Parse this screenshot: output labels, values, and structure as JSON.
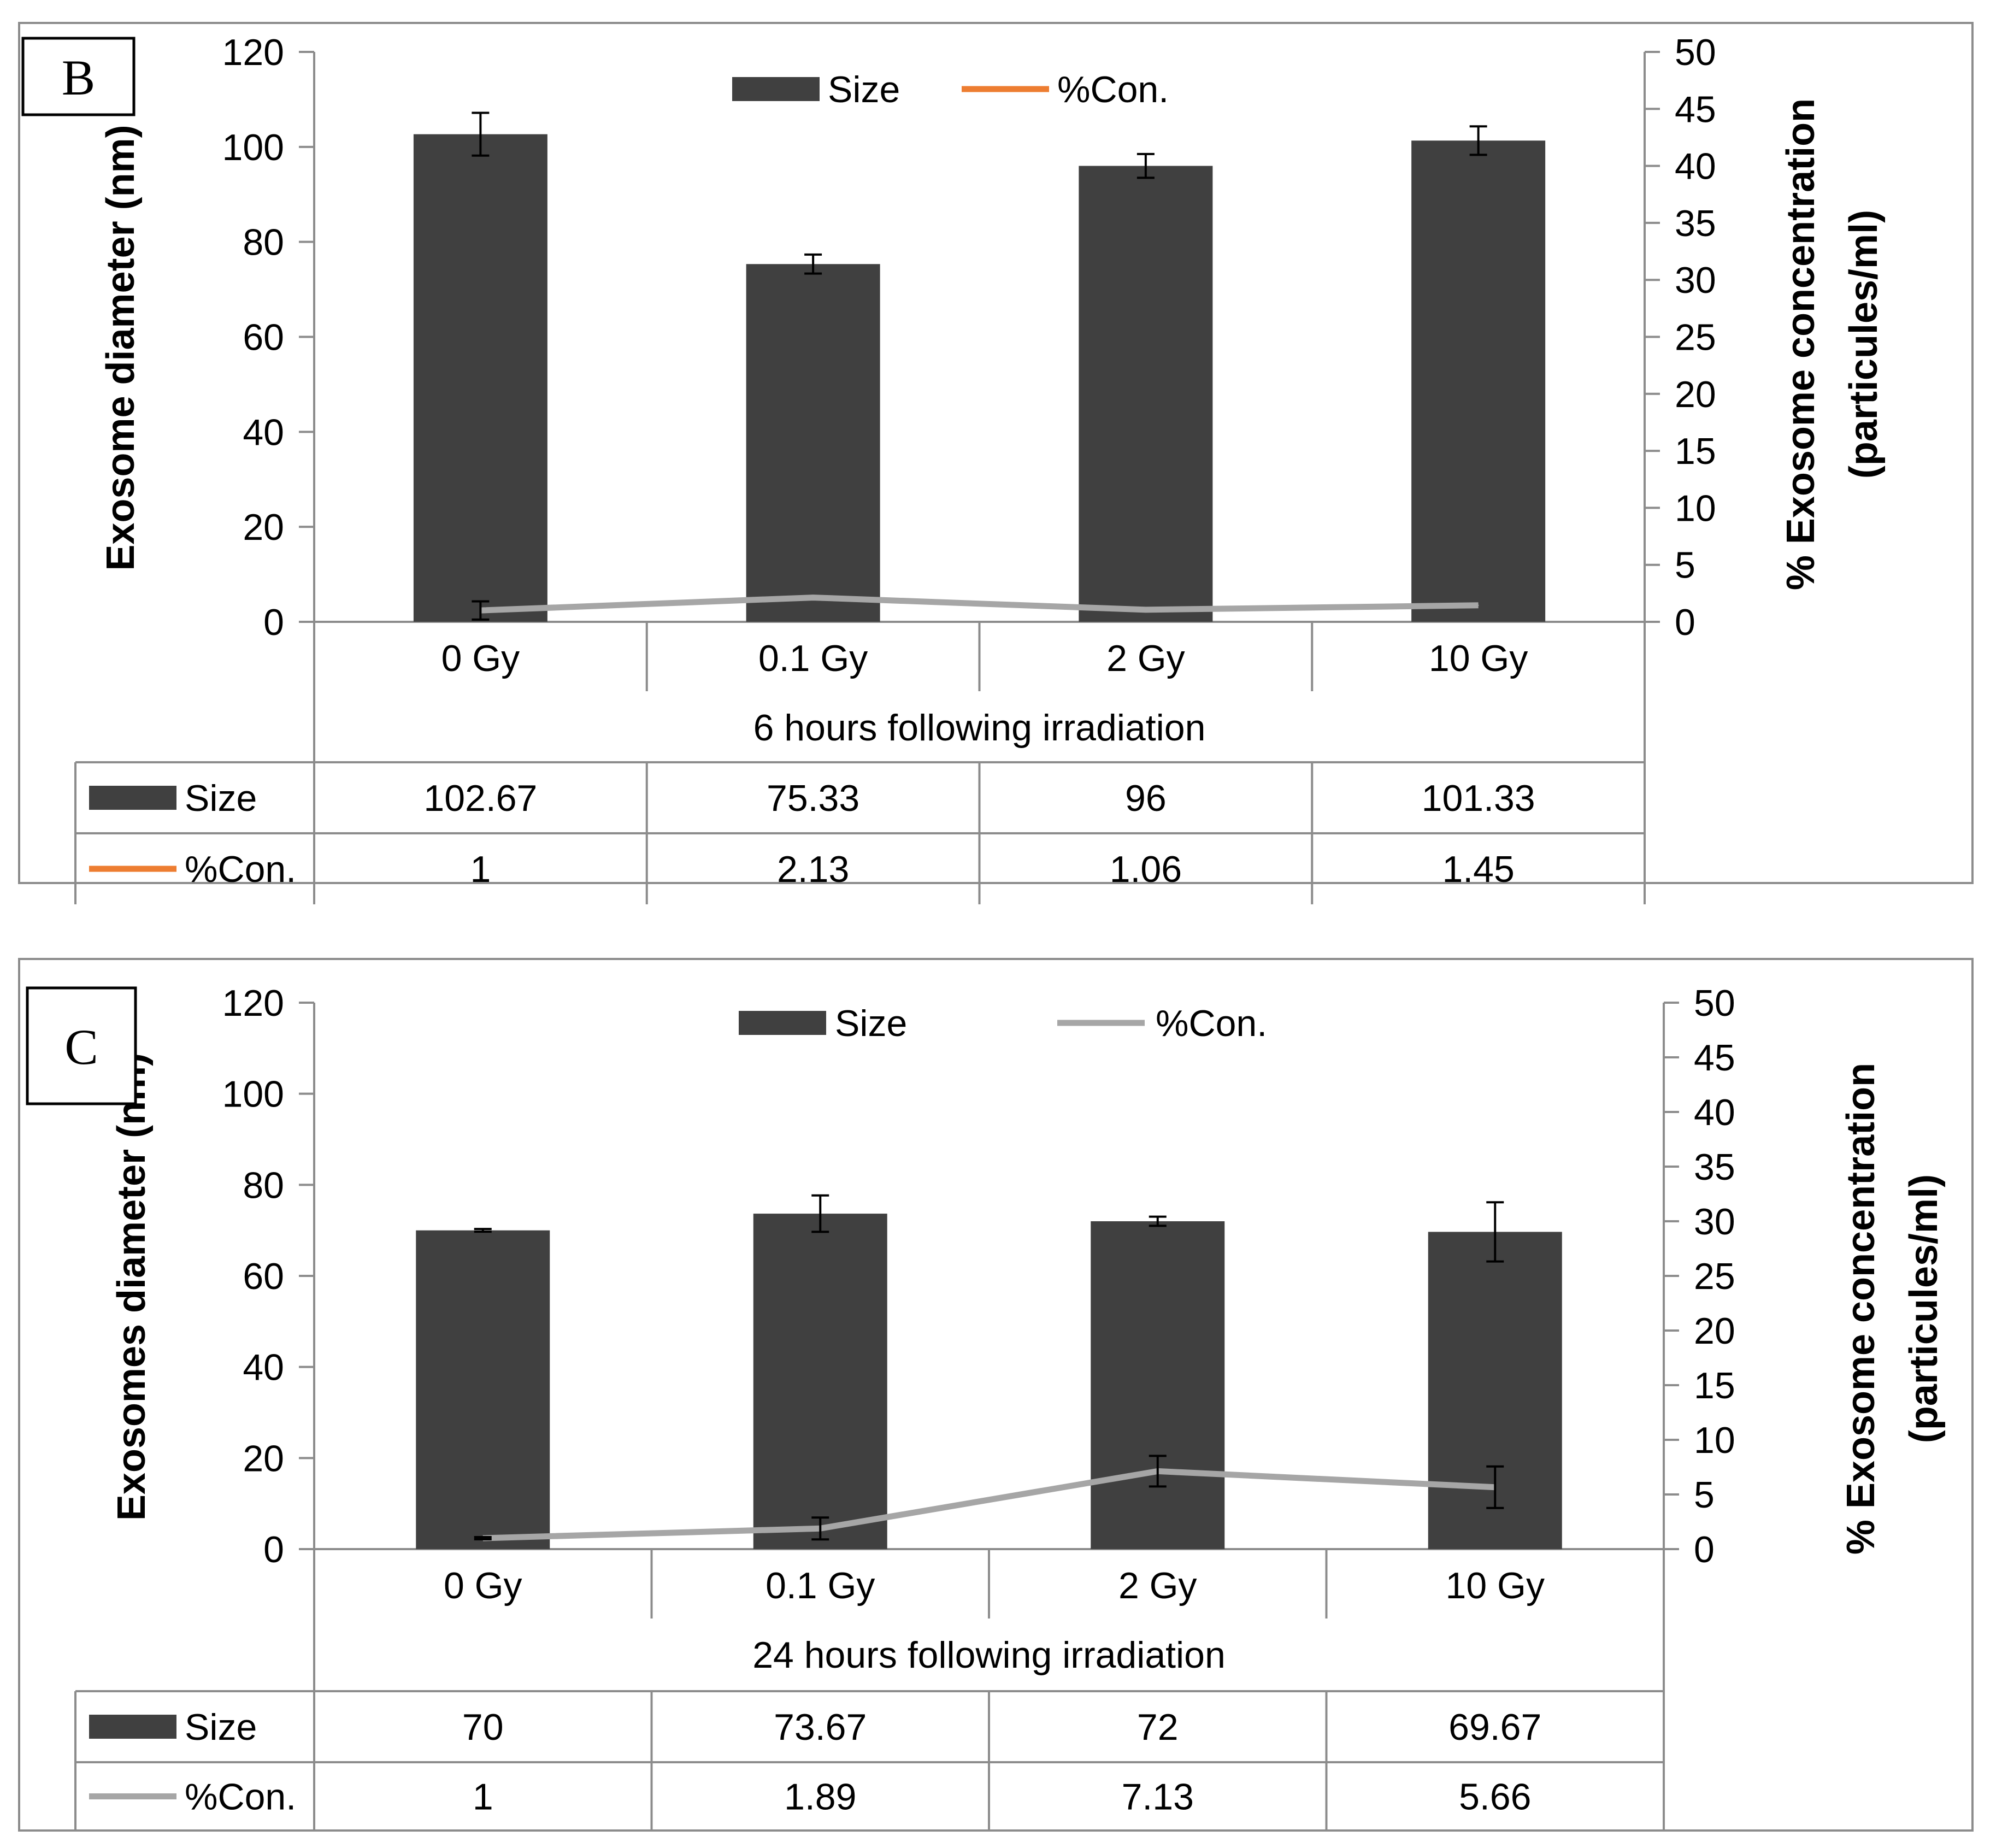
{
  "chart_data": [
    {
      "type": "bar",
      "panel_label": "B",
      "categories": [
        "0 Gy",
        "0.1 Gy",
        "2 Gy",
        "10 Gy"
      ],
      "xlabel": "6 hours following irradiation",
      "ylabel": "Exosome diameter (nm)",
      "y2label_line1": "% Exosome concentration",
      "y2label_line2": "(particules/ml)",
      "ylim": [
        0,
        120
      ],
      "y_ticks": [
        "0",
        "20",
        "40",
        "60",
        "80",
        "100",
        "120"
      ],
      "y2lim": [
        0,
        50
      ],
      "y2_ticks": [
        "0",
        "5",
        "10",
        "15",
        "20",
        "25",
        "30",
        "35",
        "40",
        "45",
        "50"
      ],
      "legend_position": "top-center",
      "series": [
        {
          "name": "Size",
          "kind": "bar",
          "axis": "left",
          "color": "#404040",
          "values": [
            102.67,
            75.33,
            96,
            101.33
          ],
          "errors": [
            4.5,
            2.0,
            2.5,
            3.0
          ],
          "table_values": [
            "102.67",
            "75.33",
            "96",
            "101.33"
          ]
        },
        {
          "name": "%Con.",
          "kind": "line",
          "axis": "right",
          "color": "#a6a6a6",
          "legend_color": "#ed7d31",
          "values": [
            1,
            2.13,
            1.06,
            1.45
          ],
          "errors": [
            0.8,
            0.0,
            0.0,
            0.0
          ],
          "table_values": [
            "1",
            "2.13",
            "1.06",
            "1.45"
          ]
        }
      ]
    },
    {
      "type": "bar",
      "panel_label": "C",
      "categories": [
        "0 Gy",
        "0.1 Gy",
        "2 Gy",
        "10 Gy"
      ],
      "xlabel": "24 hours following irradiation",
      "ylabel": "Exosomes diameter (nm)",
      "y2label_line1": "% Exosome concentration",
      "y2label_line2": "(particules/ml)",
      "ylim": [
        0,
        120
      ],
      "y_ticks": [
        "0",
        "20",
        "40",
        "60",
        "80",
        "100",
        "120"
      ],
      "y2lim": [
        0,
        50
      ],
      "y2_ticks": [
        "0",
        "5",
        "10",
        "15",
        "20",
        "25",
        "30",
        "35",
        "40",
        "45",
        "50"
      ],
      "legend_position": "top-center",
      "series": [
        {
          "name": "Size",
          "kind": "bar",
          "axis": "left",
          "color": "#404040",
          "values": [
            70,
            73.67,
            72,
            69.67
          ],
          "errors": [
            0.3,
            4.0,
            1.0,
            6.5
          ],
          "table_values": [
            "70",
            "73.67",
            "72",
            "69.67"
          ]
        },
        {
          "name": "%Con.",
          "kind": "line",
          "axis": "right",
          "color": "#a6a6a6",
          "legend_color": "#a6a6a6",
          "values": [
            1,
            1.89,
            7.13,
            5.66
          ],
          "errors": [
            0.1,
            1.0,
            1.4,
            1.9
          ],
          "table_values": [
            "1",
            "1.89",
            "7.13",
            "5.66"
          ]
        }
      ]
    }
  ]
}
